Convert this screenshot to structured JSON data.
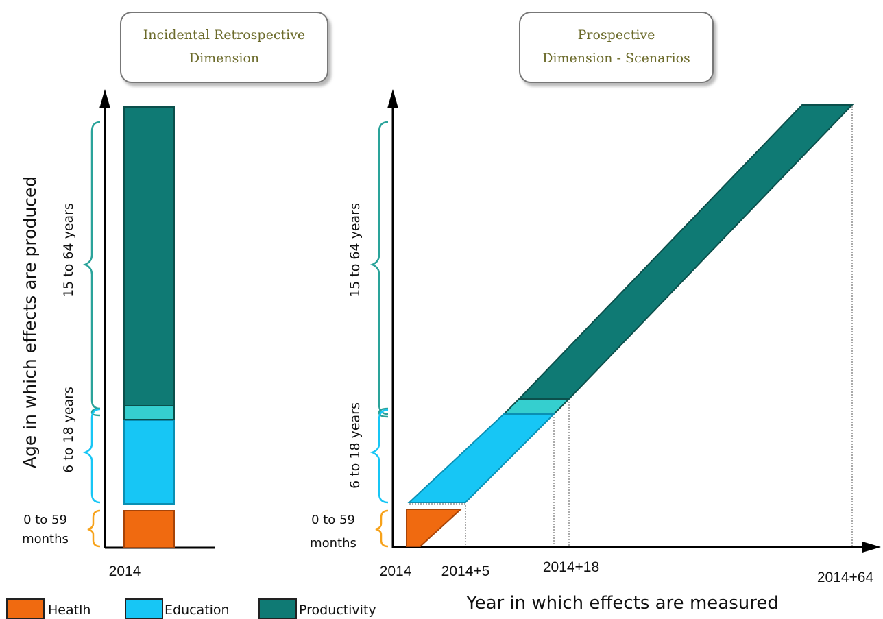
{
  "panels": {
    "left_title_line1": "Incidental Retrospective",
    "left_title_line2": "Dimension",
    "right_title_line1": "Prospective",
    "right_title_line2": "Dimension - Scenarios"
  },
  "axes": {
    "y_label": "Age in which effects are produced",
    "x_label": "Year in which effects are measured"
  },
  "age_groups": {
    "adult": "15 to 64 years",
    "school": "6 to 18 years",
    "infant_line1": "0 to 59",
    "infant_line2": "months"
  },
  "x_ticks": {
    "left": "2014",
    "t0": "2014",
    "t5": "2014+5",
    "t18": "2014+18",
    "t64": "2014+64"
  },
  "legend": {
    "health": "Heatlh",
    "education": "Education",
    "productivity": "Productivity"
  },
  "colors": {
    "health": "#f06a10",
    "education": "#17c6f5",
    "productivity": "#0f7a74",
    "overlap": "#35cfcf",
    "bracket_adult": "#2aa39a",
    "bracket_school": "#17c6f5",
    "bracket_infant": "#f7a21a"
  }
}
